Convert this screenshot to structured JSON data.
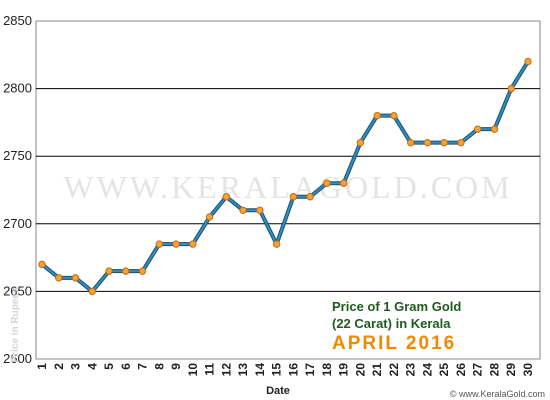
{
  "watermark": "WWW.KERALAGOLD.COM",
  "footer": "© www.KeralaGold.com",
  "colors": {
    "line": "#2e8fc0",
    "marker": "#f4a23a",
    "marker_stroke": "#c76a10",
    "title_green": "#1f5a1f",
    "title_orange": "#f08a00"
  },
  "chart_data": {
    "type": "line",
    "title_line1": "Price of 1 Gram Gold",
    "title_line2": "(22 Carat) in Kerala",
    "subtitle": "APRIL 2016",
    "xlabel": "Date",
    "ylabel": "Price in Rupees",
    "ylim": [
      2600,
      2850
    ],
    "yticks": [
      2600,
      2650,
      2700,
      2750,
      2800,
      2850
    ],
    "categories": [
      "1",
      "2",
      "3",
      "4",
      "5",
      "6",
      "7",
      "8",
      "9",
      "10",
      "11",
      "12",
      "13",
      "14",
      "15",
      "16",
      "17",
      "18",
      "19",
      "20",
      "21",
      "22",
      "23",
      "24",
      "25",
      "26",
      "27",
      "28",
      "29",
      "30"
    ],
    "series": [
      {
        "values": [
          2670,
          2660,
          2660,
          2650,
          2665,
          2665,
          2665,
          2685,
          2685,
          2685,
          2705,
          2720,
          2710,
          2710,
          2685,
          2720,
          2720,
          2730,
          2730,
          2760,
          2780,
          2780,
          2760,
          2760,
          2760,
          2760,
          2770,
          2770,
          2800,
          2820
        ]
      }
    ],
    "grid": true,
    "legend": "none"
  }
}
